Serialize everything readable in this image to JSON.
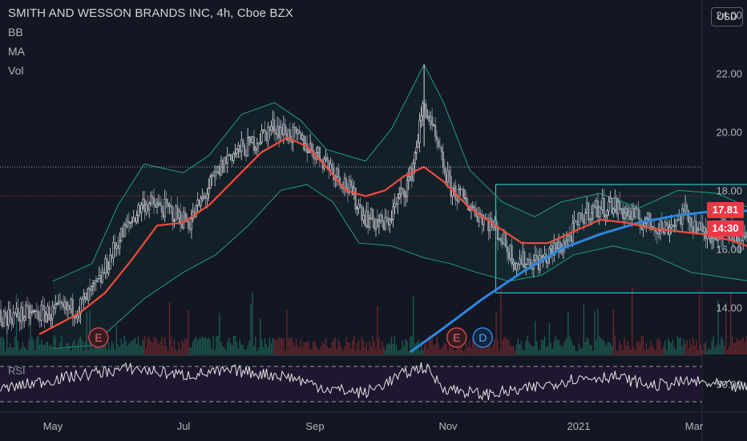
{
  "header": {
    "title": "SMITH AND WESSON BRANDS INC, 4h, Cboe BZX",
    "indicators": [
      "BB",
      "MA",
      "Vol"
    ],
    "currency": "USD"
  },
  "price_tags": {
    "last_price": "17.81",
    "countdown": "14:30"
  },
  "rsi": {
    "label": "RSI"
  },
  "colors": {
    "background": "#131722",
    "up": "#c9ccd6",
    "ma": "#f04c3e",
    "ma_long": "#2f86e0",
    "bb": "#1f9e82",
    "box": "#2ec4c4",
    "price_tag": "#f23645",
    "rsi_line": "#e6e6e6",
    "rsi_band": "#1f1630"
  },
  "chart_data": [
    {
      "type": "line",
      "title": "SMITH AND WESSON BRANDS INC, 4h, Cboe BZX",
      "x_axis_labels": [
        "May",
        "Jul",
        "Sep",
        "Nov",
        "2021",
        "Mar"
      ],
      "y_ticks": [
        14.0,
        16.0,
        18.0,
        20.0,
        22.0,
        24.0
      ],
      "ylim": [
        12.4,
        24.5
      ],
      "price_path": [
        {
          "m": 4.0,
          "v": 13.5
        },
        {
          "m": 4.3,
          "v": 13.6
        },
        {
          "m": 4.6,
          "v": 13.7
        },
        {
          "m": 4.95,
          "v": 13.8
        },
        {
          "m": 5.2,
          "v": 14.0
        },
        {
          "m": 5.35,
          "v": 14.8
        },
        {
          "m": 5.5,
          "v": 16.3
        },
        {
          "m": 5.7,
          "v": 17.6
        },
        {
          "m": 5.9,
          "v": 17.3
        },
        {
          "m": 6.05,
          "v": 16.9
        },
        {
          "m": 6.2,
          "v": 18.1
        },
        {
          "m": 6.35,
          "v": 19.2
        },
        {
          "m": 6.5,
          "v": 19.5
        },
        {
          "m": 6.7,
          "v": 20.2
        },
        {
          "m": 6.9,
          "v": 19.7
        },
        {
          "m": 7.1,
          "v": 19.0
        },
        {
          "m": 7.25,
          "v": 18.2
        },
        {
          "m": 7.4,
          "v": 17.1
        },
        {
          "m": 7.55,
          "v": 16.8
        },
        {
          "m": 7.75,
          "v": 18.5
        },
        {
          "m": 7.85,
          "v": 21.0
        },
        {
          "m": 7.95,
          "v": 19.5
        },
        {
          "m": 8.05,
          "v": 18.1
        },
        {
          "m": 8.2,
          "v": 17.5
        },
        {
          "m": 8.4,
          "v": 16.7
        },
        {
          "m": 8.55,
          "v": 15.6
        },
        {
          "m": 8.75,
          "v": 15.6
        },
        {
          "m": 8.95,
          "v": 16.3
        },
        {
          "m": 9.1,
          "v": 17.3
        },
        {
          "m": 9.3,
          "v": 17.5
        },
        {
          "m": 9.5,
          "v": 17.0
        },
        {
          "m": 9.7,
          "v": 16.7
        },
        {
          "m": 9.85,
          "v": 17.2
        },
        {
          "m": 10.0,
          "v": 16.5
        },
        {
          "m": 10.15,
          "v": 16.7
        },
        {
          "m": 10.35,
          "v": 16.2
        },
        {
          "m": 10.55,
          "v": 16.0
        },
        {
          "m": 10.75,
          "v": 15.5
        },
        {
          "m": 10.9,
          "v": 15.8
        },
        {
          "m": 11.05,
          "v": 16.2
        },
        {
          "m": 11.2,
          "v": 17.0
        },
        {
          "m": 11.35,
          "v": 17.5
        },
        {
          "m": 11.5,
          "v": 17.8
        },
        {
          "m": 11.65,
          "v": 18.7
        },
        {
          "m": 11.75,
          "v": 20.5
        },
        {
          "m": 11.85,
          "v": 21.3
        },
        {
          "m": 11.95,
          "v": 20.7
        },
        {
          "m": 12.05,
          "v": 21.0
        },
        {
          "m": 12.12,
          "v": 19.4
        },
        {
          "m": 12.18,
          "v": 17.81
        }
      ],
      "ma_fast": [
        {
          "m": 4.9,
          "v": 13.1
        },
        {
          "m": 5.2,
          "v": 13.8
        },
        {
          "m": 5.4,
          "v": 14.5
        },
        {
          "m": 5.6,
          "v": 15.6
        },
        {
          "m": 5.8,
          "v": 16.8
        },
        {
          "m": 6.0,
          "v": 16.9
        },
        {
          "m": 6.2,
          "v": 17.5
        },
        {
          "m": 6.4,
          "v": 18.4
        },
        {
          "m": 6.6,
          "v": 19.3
        },
        {
          "m": 6.8,
          "v": 19.8
        },
        {
          "m": 6.95,
          "v": 19.5
        },
        {
          "m": 7.1,
          "v": 18.8
        },
        {
          "m": 7.25,
          "v": 18.0
        },
        {
          "m": 7.4,
          "v": 17.8
        },
        {
          "m": 7.55,
          "v": 18.0
        },
        {
          "m": 7.7,
          "v": 18.5
        },
        {
          "m": 7.85,
          "v": 18.8
        },
        {
          "m": 8.0,
          "v": 18.3
        },
        {
          "m": 8.2,
          "v": 17.4
        },
        {
          "m": 8.4,
          "v": 16.8
        },
        {
          "m": 8.6,
          "v": 16.2
        },
        {
          "m": 8.8,
          "v": 16.2
        },
        {
          "m": 9.0,
          "v": 16.6
        },
        {
          "m": 9.2,
          "v": 17.0
        },
        {
          "m": 9.4,
          "v": 16.9
        },
        {
          "m": 9.6,
          "v": 16.7
        },
        {
          "m": 9.8,
          "v": 16.6
        },
        {
          "m": 10.0,
          "v": 16.5
        },
        {
          "m": 10.2,
          "v": 16.3
        },
        {
          "m": 10.4,
          "v": 16.0
        },
        {
          "m": 10.6,
          "v": 15.6
        },
        {
          "m": 10.8,
          "v": 15.5
        },
        {
          "m": 10.95,
          "v": 15.6
        },
        {
          "m": 11.1,
          "v": 16.1
        },
        {
          "m": 11.3,
          "v": 16.8
        },
        {
          "m": 11.5,
          "v": 17.4
        },
        {
          "m": 11.65,
          "v": 18.2
        },
        {
          "m": 11.8,
          "v": 19.1
        },
        {
          "m": 11.95,
          "v": 20.2
        },
        {
          "m": 12.05,
          "v": 20.7
        },
        {
          "m": 12.15,
          "v": 20.3
        }
      ],
      "ma_slow": [
        {
          "m": 7.75,
          "v": 12.5
        },
        {
          "m": 8.0,
          "v": 13.3
        },
        {
          "m": 8.3,
          "v": 14.3
        },
        {
          "m": 8.6,
          "v": 15.2
        },
        {
          "m": 8.9,
          "v": 16.0
        },
        {
          "m": 9.2,
          "v": 16.5
        },
        {
          "m": 9.5,
          "v": 16.9
        },
        {
          "m": 9.8,
          "v": 17.15
        },
        {
          "m": 10.1,
          "v": 17.3
        },
        {
          "m": 10.4,
          "v": 17.3
        },
        {
          "m": 10.7,
          "v": 17.2
        },
        {
          "m": 11.0,
          "v": 17.15
        },
        {
          "m": 11.3,
          "v": 17.1
        },
        {
          "m": 11.6,
          "v": 17.0
        },
        {
          "m": 11.9,
          "v": 16.95
        },
        {
          "m": 12.2,
          "v": 17.1
        }
      ],
      "bb_upper": [
        {
          "m": 5.0,
          "v": 14.9
        },
        {
          "m": 5.3,
          "v": 15.5
        },
        {
          "m": 5.5,
          "v": 17.5
        },
        {
          "m": 5.7,
          "v": 18.9
        },
        {
          "m": 6.0,
          "v": 18.6
        },
        {
          "m": 6.2,
          "v": 19.2
        },
        {
          "m": 6.45,
          "v": 20.6
        },
        {
          "m": 6.7,
          "v": 21.0
        },
        {
          "m": 6.9,
          "v": 20.4
        },
        {
          "m": 7.1,
          "v": 19.4
        },
        {
          "m": 7.4,
          "v": 19.0
        },
        {
          "m": 7.6,
          "v": 20.1
        },
        {
          "m": 7.85,
          "v": 22.3
        },
        {
          "m": 8.0,
          "v": 21.0
        },
        {
          "m": 8.2,
          "v": 18.7
        },
        {
          "m": 8.45,
          "v": 17.6
        },
        {
          "m": 8.7,
          "v": 17.1
        },
        {
          "m": 8.9,
          "v": 17.6
        },
        {
          "m": 9.2,
          "v": 17.9
        },
        {
          "m": 9.5,
          "v": 17.4
        },
        {
          "m": 9.8,
          "v": 18.0
        },
        {
          "m": 10.1,
          "v": 17.9
        },
        {
          "m": 10.4,
          "v": 17.3
        },
        {
          "m": 10.7,
          "v": 16.7
        },
        {
          "m": 10.95,
          "v": 16.6
        },
        {
          "m": 11.2,
          "v": 17.4
        },
        {
          "m": 11.5,
          "v": 18.7
        },
        {
          "m": 11.7,
          "v": 20.7
        },
        {
          "m": 11.85,
          "v": 22.3
        },
        {
          "m": 12.0,
          "v": 22.8
        },
        {
          "m": 12.15,
          "v": 22.7
        }
      ],
      "bb_lower": [
        {
          "m": 5.0,
          "v": 12.6
        },
        {
          "m": 5.3,
          "v": 12.7
        },
        {
          "m": 5.5,
          "v": 13.5
        },
        {
          "m": 5.7,
          "v": 14.3
        },
        {
          "m": 6.0,
          "v": 15.2
        },
        {
          "m": 6.25,
          "v": 15.8
        },
        {
          "m": 6.5,
          "v": 16.8
        },
        {
          "m": 6.75,
          "v": 18.0
        },
        {
          "m": 6.95,
          "v": 18.2
        },
        {
          "m": 7.15,
          "v": 17.6
        },
        {
          "m": 7.35,
          "v": 16.2
        },
        {
          "m": 7.6,
          "v": 16.1
        },
        {
          "m": 7.85,
          "v": 15.7
        },
        {
          "m": 8.05,
          "v": 15.5
        },
        {
          "m": 8.25,
          "v": 15.2
        },
        {
          "m": 8.5,
          "v": 14.9
        },
        {
          "m": 8.75,
          "v": 15.1
        },
        {
          "m": 9.0,
          "v": 15.8
        },
        {
          "m": 9.3,
          "v": 16.1
        },
        {
          "m": 9.6,
          "v": 15.8
        },
        {
          "m": 9.9,
          "v": 15.2
        },
        {
          "m": 10.2,
          "v": 15.0
        },
        {
          "m": 10.5,
          "v": 14.8
        },
        {
          "m": 10.8,
          "v": 14.7
        },
        {
          "m": 11.0,
          "v": 14.8
        },
        {
          "m": 11.3,
          "v": 15.2
        },
        {
          "m": 11.55,
          "v": 15.8
        },
        {
          "m": 11.75,
          "v": 16.5
        },
        {
          "m": 11.9,
          "v": 16.1
        },
        {
          "m": 12.05,
          "v": 16.3
        },
        {
          "m": 12.15,
          "v": 17.2
        }
      ],
      "range_box": {
        "m_start": 8.4,
        "m_end": 11.45,
        "v_low": 14.5,
        "v_high": 18.2
      },
      "projection_arrows": [
        {
          "from": {
            "m": 12.24,
            "v": 17.5
          },
          "to": {
            "m": 12.58,
            "v": 21.8
          }
        },
        {
          "from": {
            "m": 12.92,
            "v": 22.5
          },
          "to": {
            "m": 13.25,
            "v": 24.7
          }
        },
        {
          "from": {
            "m": 12.24,
            "v": 17.8
          },
          "to": {
            "m": 12.38,
            "v": 17.0
          }
        }
      ],
      "horizontal_levels": [
        {
          "v": 18.8,
          "style": "dotted",
          "color": "#c9ccd6"
        },
        {
          "v": 17.81,
          "style": "dotted",
          "color": "#f23645"
        }
      ],
      "earnings_markers": [
        {
          "m": 5.35,
          "label": "E"
        },
        {
          "m": 8.1,
          "label": "E"
        },
        {
          "m": 8.3,
          "label": "D"
        },
        {
          "m": 10.88,
          "label": "E"
        },
        {
          "m": 11.09,
          "label": "D"
        }
      ],
      "grid": false,
      "price_scale_side": "right"
    },
    {
      "type": "line",
      "title": "RSI",
      "y_ticks": [
        50.0
      ],
      "upper_band": 70,
      "lower_band": 30,
      "values_path": [
        {
          "m": 4.0,
          "v": 48
        },
        {
          "m": 4.3,
          "v": 58
        },
        {
          "m": 4.6,
          "v": 44
        },
        {
          "m": 5.0,
          "v": 55
        },
        {
          "m": 5.3,
          "v": 62
        },
        {
          "m": 5.6,
          "v": 68
        },
        {
          "m": 6.0,
          "v": 60
        },
        {
          "m": 6.4,
          "v": 65
        },
        {
          "m": 6.8,
          "v": 59
        },
        {
          "m": 7.1,
          "v": 45
        },
        {
          "m": 7.4,
          "v": 40
        },
        {
          "m": 7.7,
          "v": 62
        },
        {
          "m": 7.85,
          "v": 70
        },
        {
          "m": 8.0,
          "v": 46
        },
        {
          "m": 8.3,
          "v": 38
        },
        {
          "m": 8.6,
          "v": 43
        },
        {
          "m": 9.0,
          "v": 56
        },
        {
          "m": 9.3,
          "v": 59
        },
        {
          "m": 9.6,
          "v": 48
        },
        {
          "m": 9.9,
          "v": 53
        },
        {
          "m": 10.2,
          "v": 47
        },
        {
          "m": 10.5,
          "v": 44
        },
        {
          "m": 10.8,
          "v": 42
        },
        {
          "m": 11.1,
          "v": 58
        },
        {
          "m": 11.4,
          "v": 64
        },
        {
          "m": 11.7,
          "v": 66
        },
        {
          "m": 11.85,
          "v": 73
        },
        {
          "m": 12.0,
          "v": 56
        },
        {
          "m": 12.1,
          "v": 60
        },
        {
          "m": 12.18,
          "v": 36
        }
      ],
      "ylim": [
        20,
        80
      ]
    }
  ]
}
